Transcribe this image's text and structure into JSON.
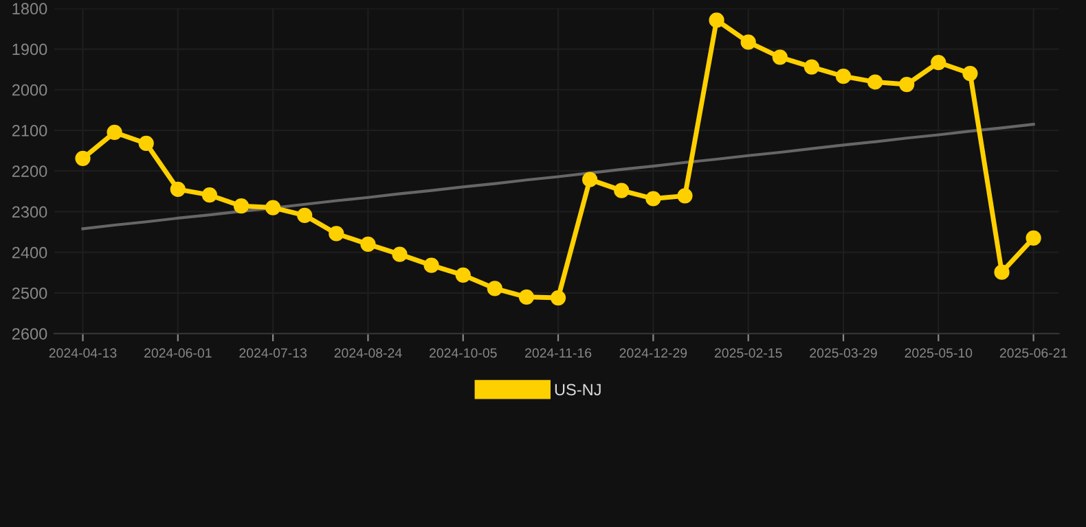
{
  "chart_data": {
    "type": "line",
    "categories": [
      "2024-04-13",
      null,
      null,
      "2024-06-01",
      null,
      null,
      "2024-07-13",
      null,
      null,
      "2024-08-24",
      null,
      null,
      "2024-10-05",
      null,
      null,
      "2024-11-16",
      null,
      null,
      "2024-12-29",
      null,
      null,
      "2025-02-15",
      null,
      null,
      "2025-03-29",
      null,
      null,
      "2025-05-10",
      null,
      null,
      "2025-06-21"
    ],
    "series": [
      {
        "name": "US-NJ",
        "color": "#ffd000",
        "marker": "circle",
        "values": [
          2169,
          2105,
          2132,
          2245,
          2259,
          2286,
          2290,
          2309,
          2354,
          2380,
          2405,
          2432,
          2456,
          2489,
          2510,
          2512,
          2221,
          2248,
          2268,
          2261,
          1829,
          1883,
          1920,
          1944,
          1967,
          1981,
          1987,
          1933,
          1960,
          2449,
          2365
        ]
      },
      {
        "type": "line",
        "color": "#666666",
        "marker": "none",
        "values": [
          2342,
          2333,
          2325,
          2316,
          2308,
          2299,
          2291,
          2282,
          2273,
          2265,
          2256,
          2248,
          2239,
          2231,
          2222,
          2214,
          2205,
          2196,
          2188,
          2179,
          2171,
          2162,
          2154,
          2145,
          2136,
          2128,
          2119,
          2111,
          2102,
          2094,
          2085
        ]
      }
    ],
    "ylim": [
      2600,
      1800
    ],
    "yticks": [
      1800,
      1900,
      2000,
      2100,
      2200,
      2300,
      2400,
      2500,
      2600
    ],
    "grid": true,
    "legend": "bottom"
  }
}
